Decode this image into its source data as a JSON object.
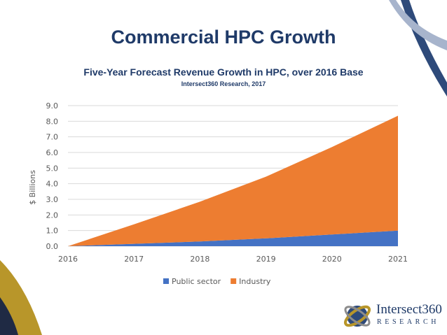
{
  "slide": {
    "title": "Commercial HPC Growth"
  },
  "logo": {
    "name": "Intersect360",
    "tagline": "RESEARCH"
  },
  "colors": {
    "title": "#1f3a68",
    "public_sector": "#4472c4",
    "industry": "#ed7d31",
    "gold": "#b8962a",
    "navy": "#2e4a7a"
  },
  "chart_data": {
    "type": "area",
    "stacked": true,
    "title": "Five-Year Forecast Revenue Growth in HPC, over 2016 Base",
    "subtitle": "Intersect360 Research, 2017",
    "ylabel": "$ Billions",
    "xlabel": "",
    "x": [
      "2016",
      "2017",
      "2018",
      "2019",
      "2020",
      "2021"
    ],
    "y_ticks": [
      "0.0",
      "1.0",
      "2.0",
      "3.0",
      "4.0",
      "5.0",
      "6.0",
      "7.0",
      "8.0",
      "9.0"
    ],
    "ylim": [
      0,
      9
    ],
    "grid": true,
    "legend_position": "bottom",
    "series": [
      {
        "name": "Public sector",
        "values": [
          0,
          0.15,
          0.3,
          0.5,
          0.75,
          1.0
        ]
      },
      {
        "name": "Industry",
        "values": [
          0,
          1.25,
          2.55,
          3.95,
          5.6,
          7.35
        ]
      }
    ]
  }
}
